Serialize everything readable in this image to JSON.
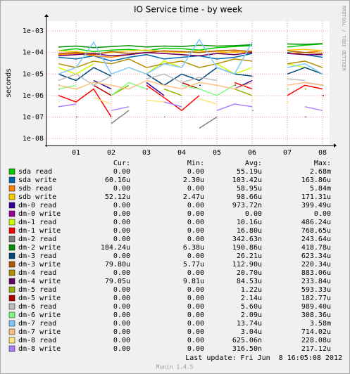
{
  "chart_data": {
    "type": "line",
    "title": "IO Service time - by week",
    "y_label": "seconds",
    "side_text": "RRDTOOL / TOBI OETIKER",
    "log_scale": true,
    "grid": true,
    "x": [
      0.5,
      1,
      1.5,
      2,
      2.5,
      3,
      3.5,
      4,
      4.5,
      5,
      5.5,
      6,
      6.5,
      7,
      7.5,
      8
    ],
    "xlim": [
      0.16,
      8.2
    ],
    "xticks": [
      {
        "value": 1,
        "label": "01"
      },
      {
        "value": 2,
        "label": "02"
      },
      {
        "value": 3,
        "label": "03"
      },
      {
        "value": 4,
        "label": "04"
      },
      {
        "value": 5,
        "label": "05"
      },
      {
        "value": 6,
        "label": "06"
      },
      {
        "value": 7,
        "label": "07"
      },
      {
        "value": 8,
        "label": "08"
      }
    ],
    "ylim": [
      4.7e-09,
      0.0029
    ],
    "yticks": [
      {
        "value": 1e-08,
        "label": "1e-08"
      },
      {
        "value": 1e-07,
        "label": "1e-07"
      },
      {
        "value": 1e-06,
        "label": "1e-06"
      },
      {
        "value": 1e-05,
        "label": "1e-05"
      },
      {
        "value": 0.0001,
        "label": "1e-04"
      },
      {
        "value": 0.001,
        "label": "1e-03"
      }
    ],
    "legend_columns": [
      "Cur:",
      "Min:",
      "Avg:",
      "Max:"
    ],
    "series": [
      {
        "name": "sda read",
        "color": "#00cc00",
        "stats": [
          "0.00",
          "0.00",
          "55.19u",
          "2.68m"
        ],
        "values": [
          0.00012,
          0.00015,
          0.00011,
          0.00013,
          0.00014,
          0.00012,
          0.00016,
          0.00015,
          0.00013,
          0.00017,
          0.00019,
          0.00021,
          null,
          0.00018,
          0.00022,
          0.00025
        ]
      },
      {
        "name": "sda write",
        "color": "#0066b3",
        "stats": [
          "60.16u",
          "2.30u",
          "103.42u",
          "163.86u"
        ],
        "values": [
          6e-05,
          5e-05,
          7e-05,
          4e-05,
          6e-05,
          8e-05,
          5e-05,
          6e-05,
          7e-05,
          5e-05,
          6e-05,
          9e-05,
          null,
          0.0001,
          8e-05,
          6e-05
        ]
      },
      {
        "name": "sdb read",
        "color": "#ff8000",
        "stats": [
          "0.00",
          "0.00",
          "58.95u",
          "5.84m"
        ],
        "values": [
          8e-05,
          9e-05,
          7e-05,
          6e-05,
          8e-05,
          0.0001,
          9e-05,
          8e-05,
          7e-05,
          9e-05,
          0.00011,
          0.0001,
          null,
          9e-05,
          0.0001,
          0.00012
        ]
      },
      {
        "name": "sdb write",
        "color": "#ffcc00",
        "stats": [
          "52.12u",
          "2.47u",
          "98.66u",
          "171.31u"
        ],
        "values": [
          0.00012,
          0.00011,
          9e-05,
          0.0001,
          0.00012,
          0.00013,
          0.00011,
          0.0001,
          0.00012,
          0.00011,
          0.0001,
          0.00012,
          null,
          0.00013,
          0.00014,
          0.00012
        ]
      },
      {
        "name": "dm-0 read",
        "color": "#330099",
        "stats": [
          "0.00",
          "0.00",
          "973.72n",
          "399.49u"
        ],
        "values": [
          3e-06,
          null,
          5e-06,
          2e-06,
          null,
          4e-06,
          1e-06,
          null,
          3e-06,
          null,
          2e-06,
          5e-06,
          null,
          null,
          4e-06,
          3e-06
        ]
      },
      {
        "name": "dm-0 write",
        "color": "#990099",
        "stats": [
          "0.00",
          "0.00",
          "0.00",
          "0.00"
        ],
        "values": [
          null,
          null,
          null,
          null,
          null,
          null,
          null,
          null,
          null,
          null,
          null,
          null,
          null,
          null,
          null,
          null
        ]
      },
      {
        "name": "dm-1 read",
        "color": "#ccff00",
        "stats": [
          "0.00",
          "0.00",
          "10.16u",
          "486.24u"
        ],
        "values": [
          2e-05,
          1e-05,
          3e-05,
          null,
          2e-05,
          1e-05,
          4e-05,
          2e-05,
          null,
          3e-05,
          1e-05,
          2e-05,
          null,
          3e-05,
          2e-05,
          1e-05
        ]
      },
      {
        "name": "dm-1 write",
        "color": "#ff0000",
        "stats": [
          "0.00",
          "0.00",
          "16.80u",
          "768.65u"
        ],
        "values": [
          1e-06,
          5e-07,
          2e-06,
          1e-07,
          null,
          3e-06,
          8e-07,
          2e-07,
          1e-06,
          null,
          4e-06,
          2e-06,
          null,
          1e-06,
          3e-06,
          2e-06
        ]
      },
      {
        "name": "dm-2 read",
        "color": "#808080",
        "stats": [
          "0.00",
          "0.00",
          "342.63n",
          "243.64u"
        ],
        "values": [
          null,
          1e-07,
          null,
          5e-08,
          2e-07,
          null,
          1e-07,
          null,
          3e-08,
          1e-07,
          null,
          2e-07,
          null,
          null,
          1e-07,
          null
        ]
      },
      {
        "name": "dm-2 write",
        "color": "#008f00",
        "stats": [
          "184.24u",
          "6.38u",
          "190.86u",
          "418.78u"
        ],
        "values": [
          0.00018,
          0.0002,
          0.00017,
          0.00019,
          0.00021,
          0.00018,
          0.0002,
          0.00019,
          0.00022,
          0.0002,
          0.00021,
          0.00023,
          null,
          0.00025,
          0.00024,
          0.00026
        ]
      },
      {
        "name": "dm-3 read",
        "color": "#00487d",
        "stats": [
          "0.00",
          "0.00",
          "26.21u",
          "623.34u"
        ],
        "values": [
          1e-05,
          5e-06,
          2e-05,
          8e-06,
          null,
          1e-05,
          3e-06,
          1e-05,
          5e-06,
          2e-05,
          1e-05,
          8e-06,
          null,
          1e-05,
          2e-05,
          1e-05
        ]
      },
      {
        "name": "dm-3 write",
        "color": "#b35a00",
        "stats": [
          "79.80u",
          "5.77u",
          "112.90u",
          "220.34u"
        ],
        "values": [
          9e-05,
          0.0001,
          8e-05,
          0.00011,
          9e-05,
          0.0001,
          0.00012,
          0.00011,
          0.0001,
          0.00012,
          0.00013,
          0.00011,
          null,
          0.00012,
          0.0001,
          9e-05
        ]
      },
      {
        "name": "dm-4 read",
        "color": "#b38f00",
        "stats": [
          "0.00",
          "0.00",
          "20.70u",
          "883.06u"
        ],
        "values": [
          3e-05,
          2e-05,
          4e-05,
          3e-05,
          5e-05,
          2e-05,
          3e-05,
          4e-05,
          2e-05,
          3e-05,
          5e-05,
          4e-05,
          null,
          3e-05,
          4e-05,
          2e-05
        ]
      },
      {
        "name": "dm-4 write",
        "color": "#6b006b",
        "stats": [
          "79.05u",
          "9.81u",
          "84.53u",
          "233.84u"
        ],
        "values": [
          7e-05,
          8e-05,
          9e-05,
          7e-05,
          8e-05,
          0.0001,
          9e-05,
          8e-05,
          7e-05,
          9e-05,
          8e-05,
          0.0001,
          null,
          9e-05,
          8e-05,
          8e-05
        ]
      },
      {
        "name": "dm-5 read",
        "color": "#8fb300",
        "stats": [
          "0.00",
          "0.00",
          "1.22u",
          "593.33u"
        ],
        "values": [
          null,
          2e-06,
          null,
          1e-06,
          3e-06,
          null,
          2e-06,
          1e-06,
          null,
          null,
          2e-06,
          1e-06,
          null,
          null,
          2e-06,
          null
        ]
      },
      {
        "name": "dm-5 write",
        "color": "#b30000",
        "stats": [
          "0.00",
          "0.00",
          "2.14u",
          "182.77u"
        ],
        "values": [
          2e-06,
          null,
          3e-06,
          1e-06,
          null,
          2e-06,
          null,
          4e-06,
          2e-06,
          null,
          3e-06,
          null,
          null,
          2e-06,
          null,
          1e-06
        ]
      },
      {
        "name": "dm-6 read",
        "color": "#bebebe",
        "stats": [
          "0.00",
          "0.00",
          "5.60u",
          "989.40u"
        ],
        "values": [
          5e-06,
          1e-05,
          3e-06,
          8e-06,
          null,
          6e-06,
          1e-05,
          4e-06,
          7e-06,
          5e-06,
          null,
          8e-06,
          null,
          6e-06,
          5e-06,
          null
        ]
      },
      {
        "name": "dm-6 write",
        "color": "#80ff80",
        "stats": [
          "0.00",
          "0.00",
          "2.09u",
          "308.36u"
        ],
        "values": [
          2e-06,
          3e-06,
          null,
          1e-06,
          4e-06,
          2e-06,
          null,
          3e-06,
          2e-06,
          1e-06,
          3e-06,
          null,
          null,
          2e-06,
          null,
          3e-06
        ]
      },
      {
        "name": "dm-7 read",
        "color": "#80c9ff",
        "stats": [
          "0.00",
          "0.00",
          "13.74u",
          "3.58m"
        ],
        "values": [
          1e-05,
          2e-05,
          0.0003,
          1e-05,
          2e-05,
          1e-05,
          3e-05,
          2e-05,
          0.0004,
          2e-05,
          1e-05,
          0.0003,
          null,
          2e-05,
          3e-05,
          1e-05
        ]
      },
      {
        "name": "dm-7 write",
        "color": "#ffc080",
        "stats": [
          "0.00",
          "0.00",
          "3.04u",
          "714.02u"
        ],
        "values": [
          3e-06,
          2e-06,
          4e-06,
          3e-06,
          2e-06,
          5e-06,
          3e-06,
          2e-06,
          4e-06,
          3e-06,
          2e-06,
          4e-06,
          null,
          3e-06,
          4e-06,
          3e-06
        ]
      },
      {
        "name": "dm-8 read",
        "color": "#ffe680",
        "stats": [
          "0.00",
          "0.00",
          "625.06n",
          "228.08u"
        ],
        "values": [
          5e-07,
          null,
          8e-07,
          4e-07,
          null,
          6e-07,
          5e-07,
          null,
          7e-07,
          4e-07,
          null,
          6e-07,
          null,
          5e-07,
          null,
          8e-07
        ]
      },
      {
        "name": "dm-8 write",
        "color": "#aa80ff",
        "stats": [
          "0.00",
          "0.00",
          "316.50n",
          "217.12u"
        ],
        "values": [
          3e-07,
          4e-07,
          null,
          2e-07,
          3e-07,
          null,
          5e-07,
          3e-07,
          null,
          2e-07,
          4e-07,
          3e-07,
          null,
          null,
          3e-07,
          2e-07
        ]
      }
    ],
    "last_update": "Last update: Fri Jun  8 16:05:08 2012",
    "footer": "Munin 1.4.5"
  }
}
